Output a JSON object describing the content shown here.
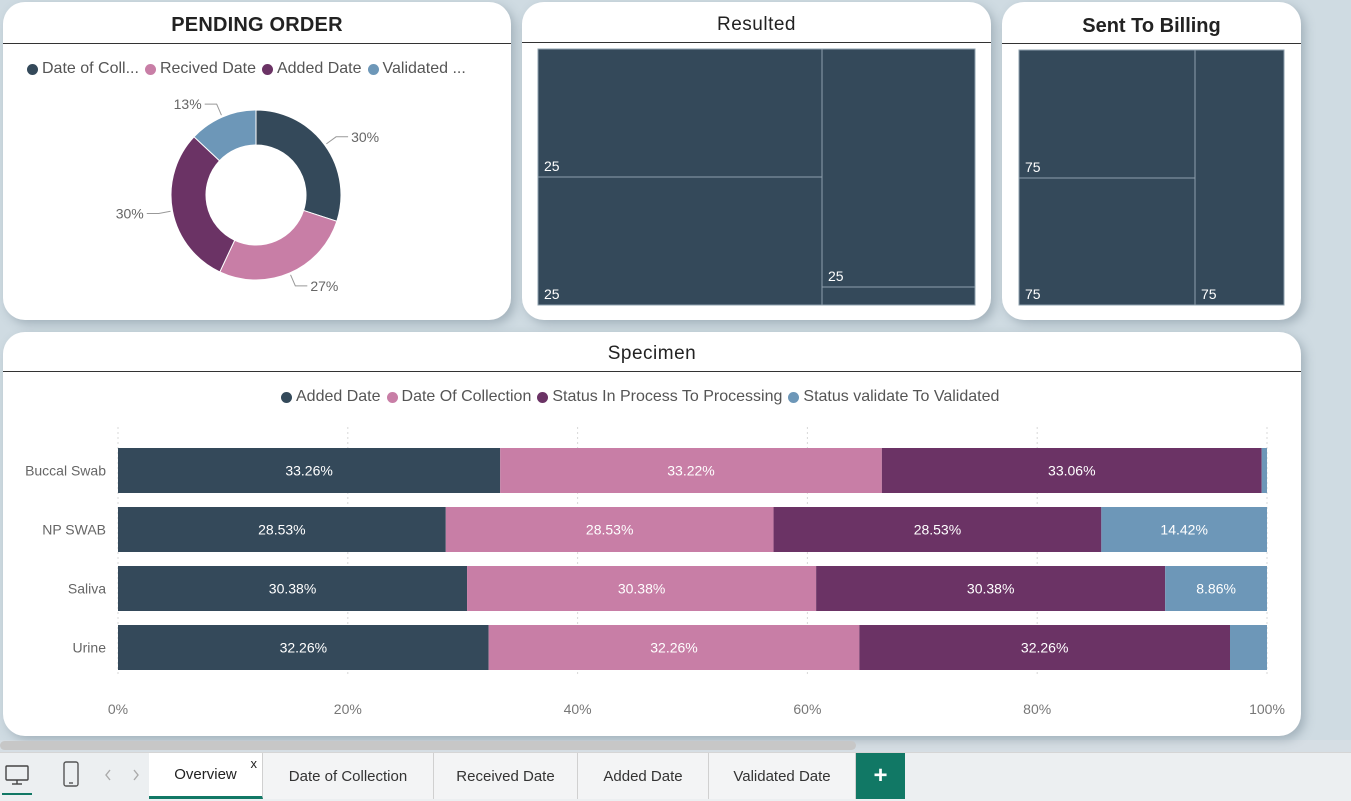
{
  "colors": {
    "dark_slate": "#34495a",
    "pink": "#c87ea6",
    "purple": "#6b3365",
    "blue": "#6d97b8",
    "tab_accent": "#117865"
  },
  "pending_order": {
    "title": "PENDING ORDER",
    "legend": [
      {
        "label": "Date of Coll...",
        "color": "#34495a"
      },
      {
        "label": "Recived Date",
        "color": "#c87ea6"
      },
      {
        "label": "Added Date",
        "color": "#6b3365"
      },
      {
        "label": "Validated ...",
        "color": "#6d97b8"
      }
    ]
  },
  "resulted": {
    "title": "Resulted"
  },
  "sent_to_billing": {
    "title": "Sent To Billing"
  },
  "specimen": {
    "title": "Specimen",
    "legend": [
      {
        "label": "Added Date",
        "color": "#34495a"
      },
      {
        "label": "Date Of Collection",
        "color": "#c87ea6"
      },
      {
        "label": "Status In Process To Processing",
        "color": "#6b3365"
      },
      {
        "label": "Status validate To Validated",
        "color": "#6d97b8"
      }
    ]
  },
  "chart_data": [
    {
      "type": "pie",
      "title": "PENDING ORDER",
      "variant": "donut",
      "labels": [
        "Date of Coll...",
        "Recived Date",
        "Added Date",
        "Validated ..."
      ],
      "values": [
        30,
        27,
        30,
        13
      ],
      "value_labels": [
        "30%",
        "27%",
        "30%",
        "13%"
      ],
      "colors": [
        "#34495a",
        "#c87ea6",
        "#6b3365",
        "#6d97b8"
      ],
      "legend": "top"
    },
    {
      "type": "treemap",
      "title": "Resulted",
      "values": [
        25,
        25,
        25,
        25
      ],
      "value_labels": [
        "25",
        "25",
        "25",
        ""
      ]
    },
    {
      "type": "treemap",
      "title": "Sent To Billing",
      "values": [
        75,
        75,
        75,
        75
      ],
      "value_labels": [
        "75",
        "75",
        "75",
        ""
      ]
    },
    {
      "type": "bar",
      "orientation": "horizontal",
      "stacked": "100%",
      "title": "Specimen",
      "categories": [
        "Buccal Swab",
        "NP SWAB",
        "Saliva",
        "Urine"
      ],
      "series": [
        {
          "name": "Added Date",
          "color": "#34495a",
          "values": [
            33.26,
            28.53,
            30.38,
            32.26
          ],
          "labels": [
            "33.26%",
            "28.53%",
            "30.38%",
            "32.26%"
          ]
        },
        {
          "name": "Date Of Collection",
          "color": "#c87ea6",
          "values": [
            33.22,
            28.53,
            30.38,
            32.26
          ],
          "labels": [
            "33.22%",
            "28.53%",
            "30.38%",
            "32.26%"
          ]
        },
        {
          "name": "Status In Process To Processing",
          "color": "#6b3365",
          "values": [
            33.06,
            28.53,
            30.38,
            32.26
          ],
          "labels": [
            "33.06%",
            "28.53%",
            "30.38%",
            "32.26%"
          ]
        },
        {
          "name": "Status validate To Validated",
          "color": "#6d97b8",
          "values": [
            0.46,
            14.42,
            8.86,
            3.22
          ],
          "labels": [
            "",
            "14.42%",
            "8.86%",
            ""
          ]
        }
      ],
      "x_ticks": [
        "0%",
        "20%",
        "40%",
        "60%",
        "80%",
        "100%"
      ],
      "xlim": [
        0,
        100
      ],
      "grid": true,
      "legend": "top"
    }
  ],
  "tabs": {
    "items": [
      {
        "label": "Overview",
        "active": true,
        "close": "x"
      },
      {
        "label": "Date of Collection",
        "active": false
      },
      {
        "label": "Received Date",
        "active": false
      },
      {
        "label": "Added Date",
        "active": false
      },
      {
        "label": "Validated Date",
        "active": false
      }
    ],
    "add_label": "+"
  },
  "toolbar_icons": [
    "desktop-icon",
    "phone-icon",
    "chevron-left-icon",
    "chevron-right-icon"
  ]
}
